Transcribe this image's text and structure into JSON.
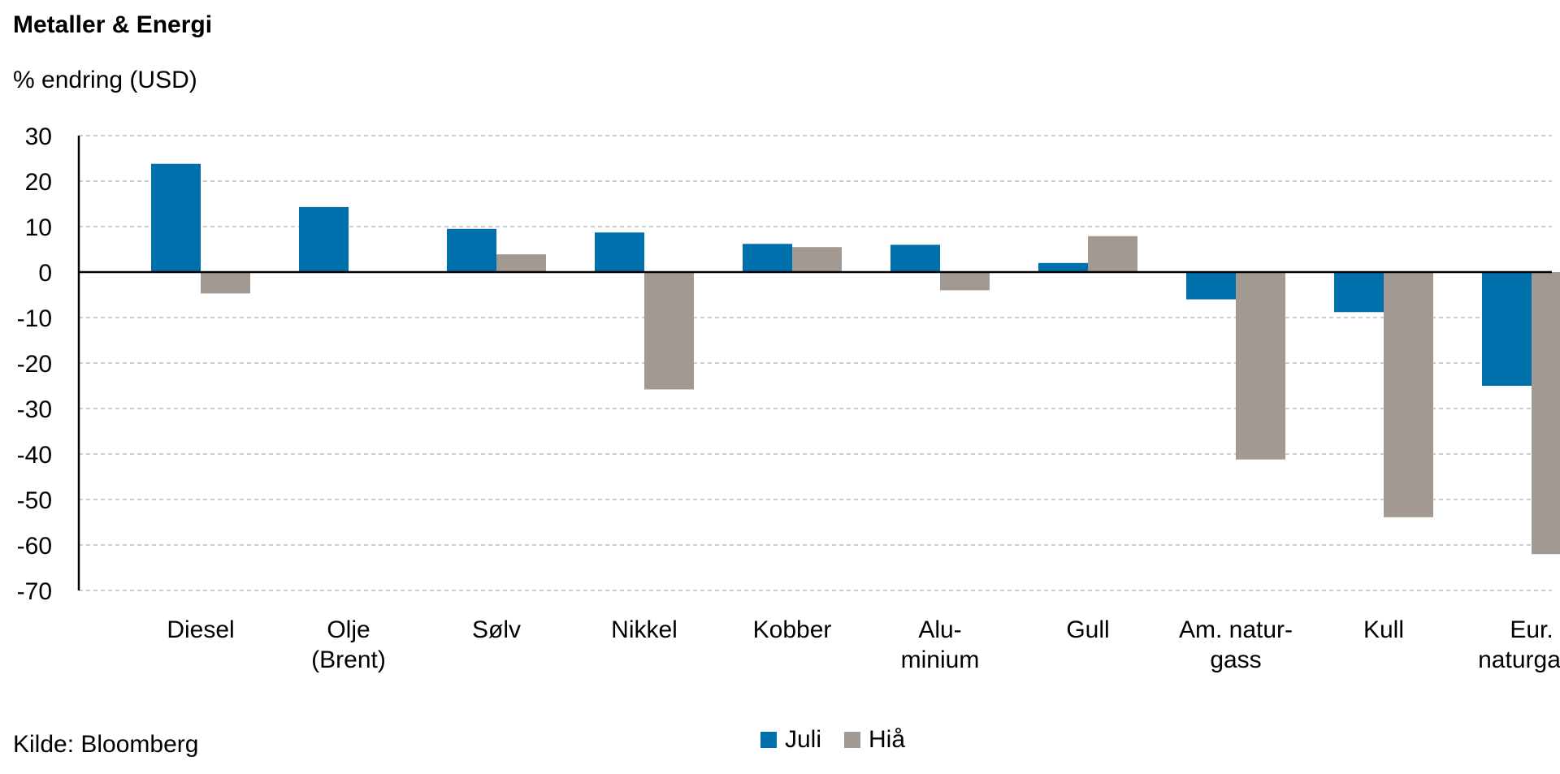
{
  "colors": {
    "juli": "#0070ad",
    "hia": "#a29a92",
    "grid": "#bdbdbd",
    "axis": "#000000"
  },
  "source": "Kilde: Bloomberg",
  "chart_data": {
    "type": "bar",
    "title": "Metaller & Energi",
    "subtitle": "% endring (USD)",
    "categories": [
      [
        "Diesel"
      ],
      [
        "Olje",
        "(Brent)"
      ],
      [
        "Sølv"
      ],
      [
        "Nikkel"
      ],
      [
        "Kobber"
      ],
      [
        "Alu-",
        "minium"
      ],
      [
        "Gull"
      ],
      [
        "Am. natur-",
        "gass"
      ],
      [
        "Kull"
      ],
      [
        "Eur.",
        "naturgass"
      ]
    ],
    "series": [
      {
        "name": "Juli",
        "color_key": "juli",
        "values": [
          23.8,
          14.3,
          9.5,
          8.7,
          6.2,
          6.0,
          2.0,
          -6.0,
          -8.8,
          -25.0
        ]
      },
      {
        "name": "Hiå",
        "color_key": "hia",
        "values": [
          -4.7,
          0,
          3.9,
          -25.8,
          5.5,
          -4.0,
          7.9,
          -41.2,
          -53.9,
          -62.0
        ]
      }
    ],
    "ylim": [
      -70,
      30
    ],
    "yticks": [
      30,
      20,
      10,
      0,
      -10,
      -20,
      -30,
      -40,
      -50,
      -60,
      -70
    ],
    "grid": true,
    "legend_position": "bottom"
  }
}
